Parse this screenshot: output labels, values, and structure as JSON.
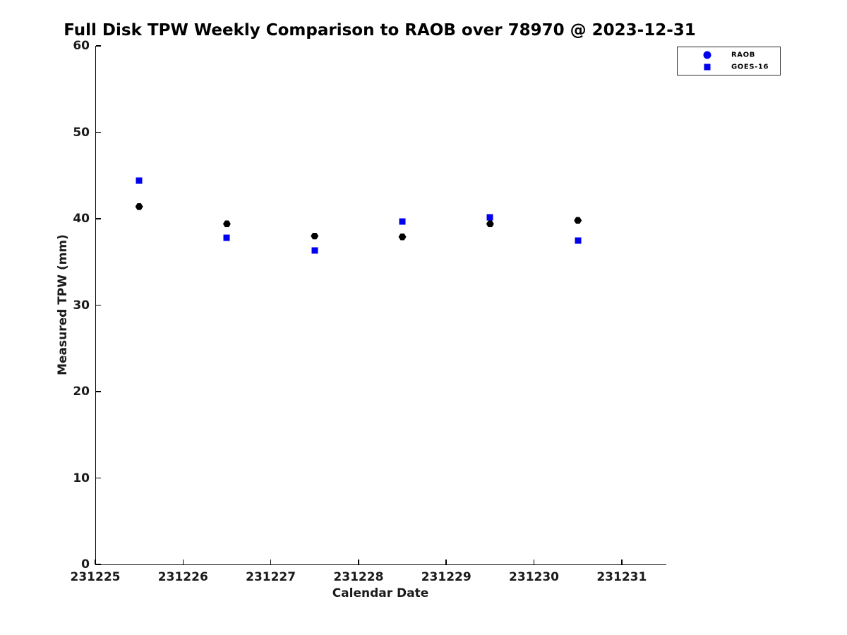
{
  "title": "Full Disk TPW Weekly Comparison to RAOB over 78970 @ 2023-12-31",
  "chart_data": {
    "type": "scatter",
    "title": "Full Disk TPW Weekly Comparison to RAOB over 78970 @ 2023-12-31",
    "xlabel": "Calendar Date",
    "ylabel": "Measured TPW (mm)",
    "xlim": [
      231225,
      231231.5
    ],
    "ylim": [
      0,
      60
    ],
    "x_ticks": [
      231225,
      231226,
      231227,
      231228,
      231229,
      231230,
      231231
    ],
    "y_ticks": [
      0,
      10,
      20,
      30,
      40,
      50,
      60
    ],
    "grid": false,
    "background_color": "#ffffff",
    "axis_color": "#000000",
    "text_color": "#1a1a1a",
    "legend": {
      "position": "top-right-outside",
      "entries": [
        {
          "label": "RAOB",
          "marker": "circle",
          "color": "#0000ee"
        },
        {
          "label": "GOES-16",
          "marker": "square",
          "color": "#0000ee"
        }
      ]
    },
    "series": [
      {
        "name": "GOES-16",
        "marker": "square",
        "color": "#0000ee",
        "x": [
          231225.5,
          231226.5,
          231227.5,
          231228.5,
          231229.5,
          231230.5
        ],
        "y": [
          44.4,
          37.8,
          36.3,
          39.7,
          40.2,
          37.5
        ]
      },
      {
        "name": "RAOB",
        "marker": "hexagon",
        "color": "#000000",
        "x": [
          231225.5,
          231226.5,
          231227.5,
          231228.5,
          231229.5,
          231230.5
        ],
        "y": [
          41.4,
          39.4,
          38.0,
          37.9,
          39.4,
          39.8
        ]
      }
    ]
  }
}
